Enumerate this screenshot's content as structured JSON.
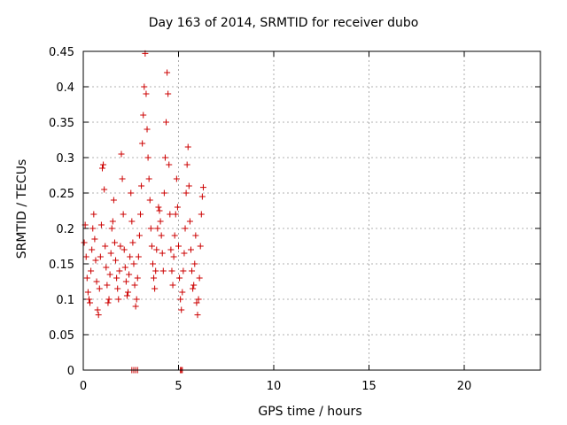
{
  "chart_data": {
    "type": "scatter",
    "title": "Day 163 of 2014, SRMTID for receiver dubo",
    "xlabel": "GPS time / hours",
    "ylabel": "SRMTID / TECUs",
    "xlim": [
      0,
      24
    ],
    "ylim": [
      0,
      0.45
    ],
    "xticks": [
      0,
      5,
      10,
      15,
      20
    ],
    "yticks": [
      0,
      0.05,
      0.1,
      0.15,
      0.2,
      0.25,
      0.3,
      0.35,
      0.4,
      0.45
    ],
    "grid": true,
    "marker": "+",
    "color": "#cc0000",
    "series": [
      {
        "points": [
          [
            0.05,
            0.18
          ],
          [
            0.1,
            0.205
          ],
          [
            0.15,
            0.16
          ],
          [
            0.2,
            0.13
          ],
          [
            0.25,
            0.11
          ],
          [
            0.3,
            0.1
          ],
          [
            0.35,
            0.095
          ],
          [
            0.4,
            0.14
          ],
          [
            0.45,
            0.17
          ],
          [
            0.5,
            0.2
          ],
          [
            0.55,
            0.22
          ],
          [
            0.6,
            0.185
          ],
          [
            0.65,
            0.155
          ],
          [
            0.7,
            0.125
          ],
          [
            0.75,
            0.085
          ],
          [
            0.8,
            0.078
          ],
          [
            0.85,
            0.115
          ],
          [
            0.9,
            0.16
          ],
          [
            0.95,
            0.205
          ],
          [
            1.0,
            0.285
          ],
          [
            1.05,
            0.29
          ],
          [
            1.1,
            0.255
          ],
          [
            1.15,
            0.175
          ],
          [
            1.2,
            0.145
          ],
          [
            1.25,
            0.12
          ],
          [
            1.3,
            0.095
          ],
          [
            1.35,
            0.1
          ],
          [
            1.4,
            0.135
          ],
          [
            1.45,
            0.165
          ],
          [
            1.5,
            0.2
          ],
          [
            1.55,
            0.21
          ],
          [
            1.6,
            0.24
          ],
          [
            1.65,
            0.18
          ],
          [
            1.7,
            0.155
          ],
          [
            1.75,
            0.13
          ],
          [
            1.8,
            0.115
          ],
          [
            1.85,
            0.1
          ],
          [
            1.9,
            0.14
          ],
          [
            1.95,
            0.175
          ],
          [
            2.0,
            0.305
          ],
          [
            2.05,
            0.27
          ],
          [
            2.1,
            0.22
          ],
          [
            2.15,
            0.17
          ],
          [
            2.2,
            0.145
          ],
          [
            2.25,
            0.125
          ],
          [
            2.3,
            0.105
          ],
          [
            2.35,
            0.11
          ],
          [
            2.4,
            0.135
          ],
          [
            2.45,
            0.16
          ],
          [
            2.5,
            0.25
          ],
          [
            2.55,
            0.21
          ],
          [
            2.6,
            0.18
          ],
          [
            2.65,
            0.15
          ],
          [
            2.7,
            0.12
          ],
          [
            2.75,
            0.09
          ],
          [
            2.8,
            0.1
          ],
          [
            2.85,
            0.13
          ],
          [
            2.9,
            0.16
          ],
          [
            2.95,
            0.19
          ],
          [
            3.0,
            0.22
          ],
          [
            3.05,
            0.26
          ],
          [
            3.1,
            0.32
          ],
          [
            3.15,
            0.36
          ],
          [
            3.2,
            0.4
          ],
          [
            3.25,
            0.447
          ],
          [
            3.3,
            0.39
          ],
          [
            3.35,
            0.34
          ],
          [
            3.4,
            0.3
          ],
          [
            3.45,
            0.27
          ],
          [
            3.5,
            0.24
          ],
          [
            3.55,
            0.2
          ],
          [
            3.6,
            0.175
          ],
          [
            3.65,
            0.15
          ],
          [
            3.7,
            0.13
          ],
          [
            3.75,
            0.115
          ],
          [
            3.8,
            0.14
          ],
          [
            3.85,
            0.17
          ],
          [
            3.9,
            0.2
          ],
          [
            3.95,
            0.23
          ],
          [
            4.0,
            0.225
          ],
          [
            4.05,
            0.21
          ],
          [
            4.1,
            0.19
          ],
          [
            4.15,
            0.165
          ],
          [
            4.2,
            0.14
          ],
          [
            4.25,
            0.25
          ],
          [
            4.3,
            0.3
          ],
          [
            4.35,
            0.35
          ],
          [
            4.4,
            0.42
          ],
          [
            4.45,
            0.39
          ],
          [
            4.5,
            0.29
          ],
          [
            4.55,
            0.22
          ],
          [
            4.6,
            0.17
          ],
          [
            4.65,
            0.14
          ],
          [
            4.7,
            0.12
          ],
          [
            4.75,
            0.16
          ],
          [
            4.8,
            0.19
          ],
          [
            4.85,
            0.22
          ],
          [
            4.9,
            0.27
          ],
          [
            4.95,
            0.23
          ],
          [
            5.0,
            0.175
          ],
          [
            5.05,
            0.13
          ],
          [
            5.1,
            0.1
          ],
          [
            5.15,
            0.085
          ],
          [
            5.2,
            0.11
          ],
          [
            5.25,
            0.14
          ],
          [
            5.3,
            0.165
          ],
          [
            5.35,
            0.2
          ],
          [
            5.4,
            0.25
          ],
          [
            5.45,
            0.29
          ],
          [
            5.5,
            0.315
          ],
          [
            5.55,
            0.26
          ],
          [
            5.6,
            0.21
          ],
          [
            5.65,
            0.17
          ],
          [
            5.7,
            0.14
          ],
          [
            5.75,
            0.115
          ],
          [
            5.8,
            0.12
          ],
          [
            5.85,
            0.15
          ],
          [
            5.9,
            0.19
          ],
          [
            5.95,
            0.095
          ],
          [
            6.0,
            0.078
          ],
          [
            6.05,
            0.1
          ],
          [
            6.1,
            0.13
          ],
          [
            6.15,
            0.175
          ],
          [
            6.2,
            0.22
          ],
          [
            6.25,
            0.245
          ],
          [
            6.3,
            0.258
          ],
          [
            2.55,
            0.0
          ],
          [
            2.65,
            0.0
          ],
          [
            2.75,
            0.0
          ],
          [
            2.85,
            0.0
          ],
          [
            5.1,
            0.0
          ],
          [
            5.15,
            0.0
          ],
          [
            5.2,
            0.0
          ]
        ]
      }
    ]
  }
}
